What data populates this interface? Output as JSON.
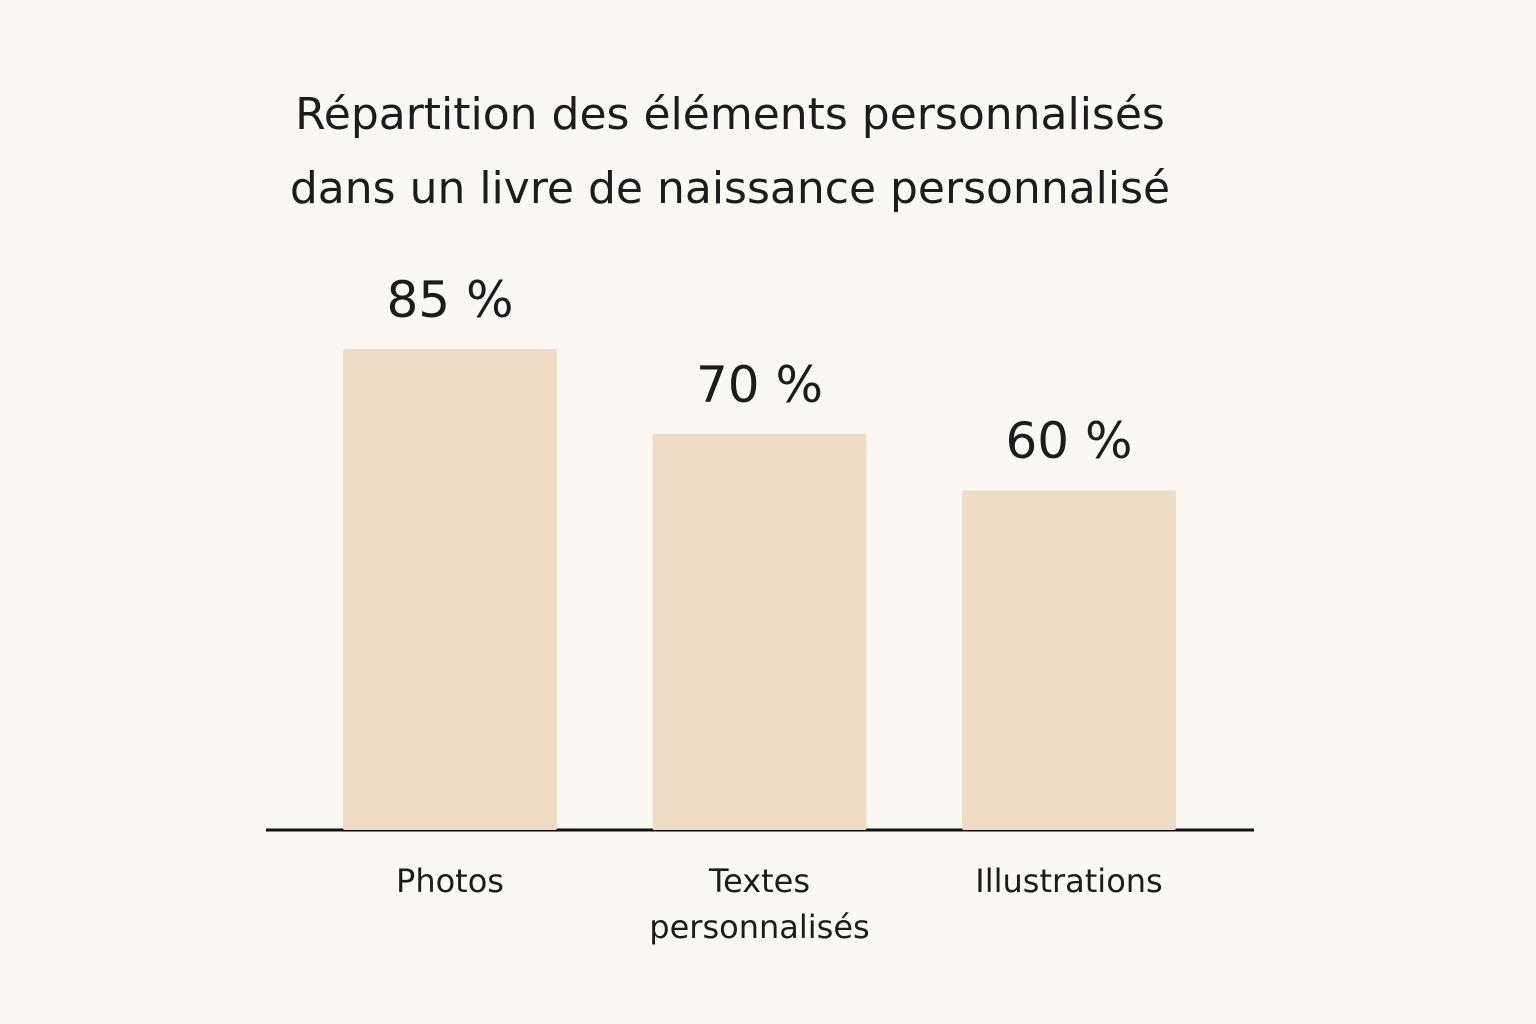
{
  "chart_data": {
    "type": "bar",
    "title": "Répartition des éléments personnalisés\ndans un livre de naissance personnalisé",
    "categories": [
      "Photos",
      "Textes\npersonnalisés",
      "Illustrations"
    ],
    "values": [
      85,
      70,
      60
    ],
    "value_labels": [
      "85 %",
      "70 %",
      "60 %"
    ],
    "color": "#eedcc5"
  }
}
